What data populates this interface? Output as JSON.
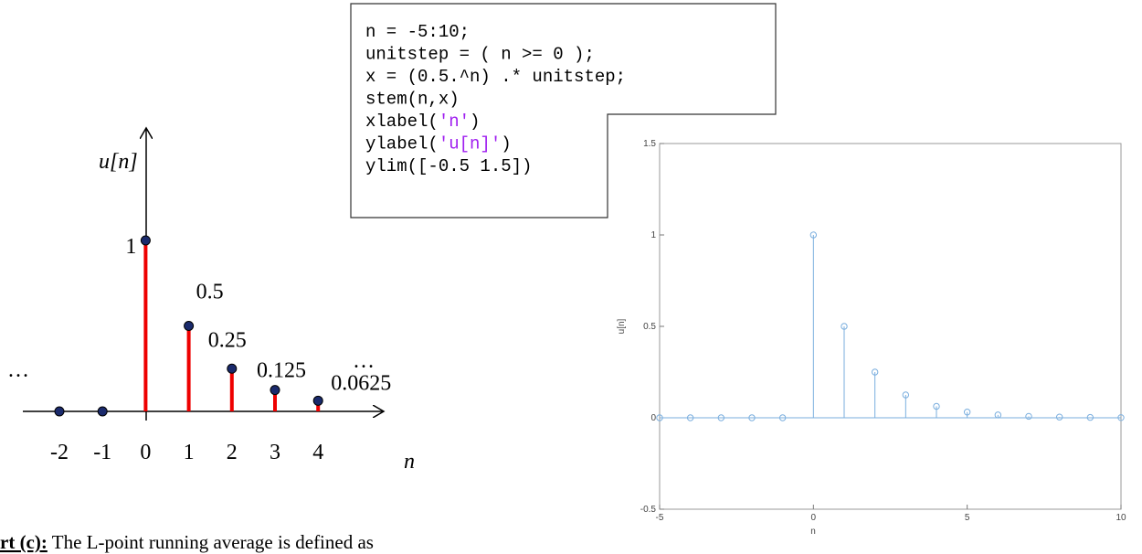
{
  "diagram": {
    "categories": [
      "-2",
      "-1",
      "0",
      "1",
      "2",
      "3",
      "4"
    ],
    "values": [
      0,
      0,
      1,
      0.5,
      0.25,
      0.125,
      0.0625
    ],
    "ylabel": "u[n]",
    "xlabel": "n",
    "ellipses": [
      "…",
      "…"
    ]
  },
  "code": {
    "lines": [
      [
        "n = -5:10;"
      ],
      [
        "unitstep = ( n >= 0 );"
      ],
      [
        "x = (0.5.^n) .* unitstep;"
      ],
      [
        "stem(n,x)"
      ],
      [
        "xlabel(",
        {
          "text": "'n'",
          "color": "#a020f0"
        },
        ")"
      ],
      [
        "ylabel(",
        {
          "text": "'u[n]'",
          "color": "#a020f0"
        },
        ")"
      ],
      [
        "ylim([-0.5 1.5])"
      ]
    ]
  },
  "chart_data": {
    "type": "stem",
    "x": [
      -5,
      -4,
      -3,
      -2,
      -1,
      0,
      1,
      2,
      3,
      4,
      5,
      6,
      7,
      8,
      9,
      10
    ],
    "values": [
      0,
      0,
      0,
      0,
      0,
      1,
      0.5,
      0.25,
      0.125,
      0.0625,
      0.03125,
      0.015625,
      0.0078125,
      0.00390625,
      0.001953125,
      0.0009765625
    ],
    "color": "#7aaede",
    "xlabel": "n",
    "ylabel": "u[n]",
    "xlim": [
      -5,
      10
    ],
    "ylim": [
      -0.5,
      1.5
    ],
    "xticks": [
      -5,
      0,
      5,
      10
    ],
    "yticks": [
      -0.5,
      0,
      0.5,
      1,
      1.5
    ]
  },
  "text": {
    "heading": "rt (c):",
    "body": " The L-point running average is defined as"
  }
}
